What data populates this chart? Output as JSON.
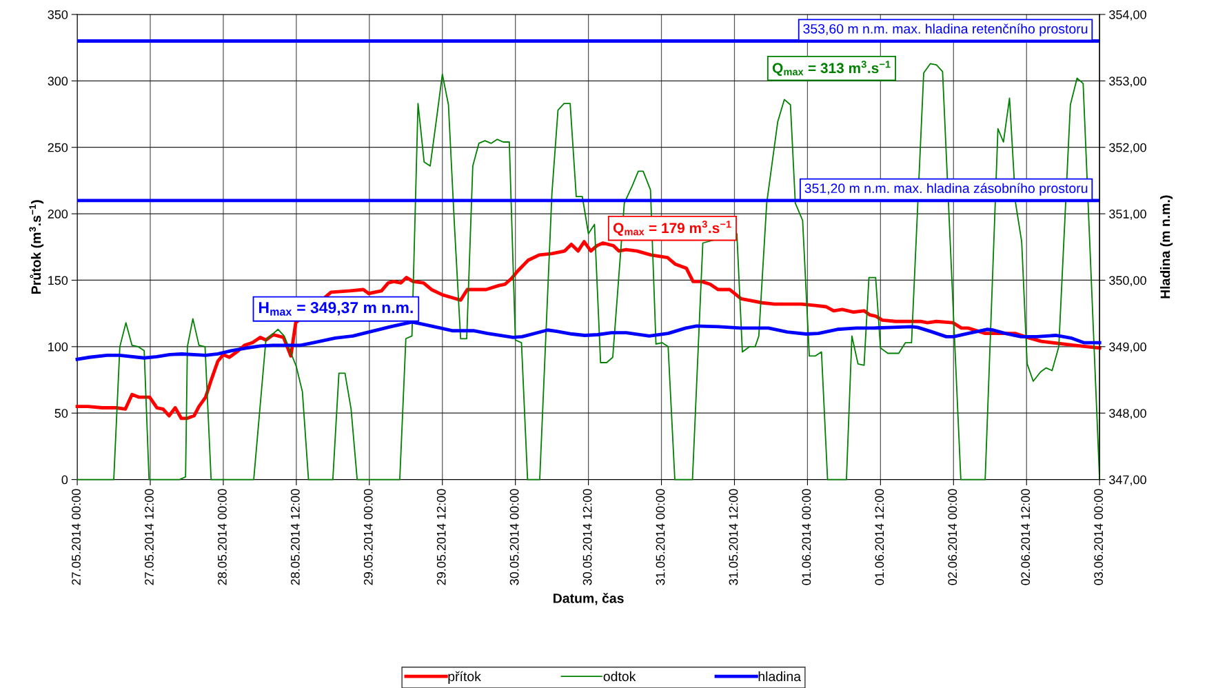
{
  "chart_data": {
    "type": "line",
    "xlabel": "Datum, čas",
    "ylabel": "Průtok (m$^{3}$.s$^{−1}$)",
    "y2label": "Hladina (m n.m.)",
    "xlim": [
      "2014-05-27T00:00",
      "2014-06-03T00:00"
    ],
    "xticks": [
      {
        "value": "2014-05-27T00:00",
        "label": "27.05.2014 00:00"
      },
      {
        "value": "2014-05-27T12:00",
        "label": "27.05.2014 12:00"
      },
      {
        "value": "2014-05-28T00:00",
        "label": "28.05.2014 00:00"
      },
      {
        "value": "2014-05-28T12:00",
        "label": "28.05.2014 12:00"
      },
      {
        "value": "2014-05-29T00:00",
        "label": "29.05.2014 00:00"
      },
      {
        "value": "2014-05-29T12:00",
        "label": "29.05.2014 12:00"
      },
      {
        "value": "2014-05-30T00:00",
        "label": "30.05.2014 00:00"
      },
      {
        "value": "2014-05-30T12:00",
        "label": "30.05.2014 12:00"
      },
      {
        "value": "2014-05-31T00:00",
        "label": "31.05.2014 00:00"
      },
      {
        "value": "2014-05-31T12:00",
        "label": "31.05.2014 12:00"
      },
      {
        "value": "2014-06-01T00:00",
        "label": "01.06.2014 00:00"
      },
      {
        "value": "2014-06-01T12:00",
        "label": "01.06.2014 12:00"
      },
      {
        "value": "2014-06-02T00:00",
        "label": "02.06.2014 00:00"
      },
      {
        "value": "2014-06-02T12:00",
        "label": "02.06.2014 12:00"
      },
      {
        "value": "2014-06-03T00:00",
        "label": "03.06.2014 00:00"
      }
    ],
    "ylim": [
      0,
      350
    ],
    "yticks": [
      0,
      50,
      100,
      150,
      200,
      250,
      300,
      350
    ],
    "y2lim": [
      347,
      354
    ],
    "y2ticks": [
      {
        "value": 347,
        "label": "347,00"
      },
      {
        "value": 348,
        "label": "348,00"
      },
      {
        "value": 349,
        "label": "349,00"
      },
      {
        "value": 350,
        "label": "350,00"
      },
      {
        "value": 351,
        "label": "351,00"
      },
      {
        "value": 352,
        "label": "352,00"
      },
      {
        "value": 353,
        "label": "353,00"
      },
      {
        "value": 354,
        "label": "354,00"
      }
    ],
    "grid": true,
    "legend": "bottom",
    "marker": "none",
    "line_style": "solid",
    "series": [
      {
        "name": "přítok",
        "color": "#ff0000",
        "x": [
          "2014-05-27T00:00",
          "2014-05-27T01:48",
          "2014-05-27T04:06",
          "2014-05-27T06:24",
          "2014-05-27T07:54",
          "2014-05-27T09:00",
          "2014-05-27T10:06",
          "2014-05-27T11:54",
          "2014-05-27T13:06",
          "2014-05-27T14:06",
          "2014-05-27T15:06",
          "2014-05-27T16:06",
          "2014-05-27T17:06",
          "2014-05-27T18:00",
          "2014-05-27T19:12",
          "2014-05-27T20:00",
          "2014-05-27T21:06",
          "2014-05-27T22:06",
          "2014-05-27T23:06",
          "2014-05-28T00:00",
          "2014-05-28T01:00",
          "2014-05-28T02:12",
          "2014-05-28T03:30",
          "2014-05-28T04:48",
          "2014-05-28T06:06",
          "2014-05-28T07:00",
          "2014-05-28T08:12",
          "2014-05-28T09:54",
          "2014-05-28T11:06",
          "2014-05-28T11:54",
          "2014-05-28T17:42",
          "2014-05-28T20:48",
          "2014-05-28T23:00",
          "2014-05-28T23:54",
          "2014-05-29T02:00",
          "2014-05-29T03:06",
          "2014-05-29T04:00",
          "2014-05-29T05:12",
          "2014-05-29T06:06",
          "2014-05-29T07:12",
          "2014-05-29T08:54",
          "2014-05-29T10:12",
          "2014-05-29T12:00",
          "2014-05-29T13:30",
          "2014-05-29T15:00",
          "2014-05-29T16:06",
          "2014-05-29T17:42",
          "2014-05-29T19:12",
          "2014-05-29T21:18",
          "2014-05-29T22:18",
          "2014-05-29T23:18",
          "2014-05-30T00:24",
          "2014-05-30T02:06",
          "2014-05-30T03:54",
          "2014-05-30T06:00",
          "2014-05-30T08:06",
          "2014-05-30T09:12",
          "2014-05-30T10:18",
          "2014-05-30T11:18",
          "2014-05-30T12:24",
          "2014-05-30T13:24",
          "2014-05-30T14:24",
          "2014-05-30T16:06",
          "2014-05-30T17:00",
          "2014-05-30T18:12",
          "2014-05-30T20:00",
          "2014-05-30T22:18",
          "2014-05-31T01:00",
          "2014-05-31T02:18",
          "2014-05-31T04:06",
          "2014-05-31T05:12",
          "2014-05-31T06:36",
          "2014-05-31T08:00",
          "2014-05-31T09:18",
          "2014-05-31T11:12",
          "2014-05-31T13:06",
          "2014-05-31T16:36",
          "2014-05-31T18:36",
          "2014-05-31T21:12",
          "2014-05-31T23:00",
          "2014-06-01T01:18",
          "2014-06-01T03:06",
          "2014-06-01T04:18",
          "2014-06-01T05:42",
          "2014-06-01T07:30",
          "2014-06-01T09:18",
          "2014-06-01T10:12",
          "2014-06-01T11:12",
          "2014-06-01T12:18",
          "2014-06-01T14:30",
          "2014-06-01T16:30",
          "2014-06-01T18:36",
          "2014-06-01T19:42",
          "2014-06-01T21:12",
          "2014-06-01T23:54",
          "2014-06-02T01:18",
          "2014-06-02T02:24",
          "2014-06-02T05:12",
          "2014-06-02T10:06",
          "2014-06-02T12:06",
          "2014-06-02T14:24",
          "2014-06-02T19:48",
          "2014-06-03T00:00"
        ],
        "values": [
          55,
          55,
          54,
          54,
          53,
          64,
          62,
          62,
          54,
          53,
          48,
          54,
          46,
          46,
          48,
          55,
          62,
          76,
          89,
          94,
          92,
          96,
          101,
          103,
          107,
          105,
          109,
          107,
          93,
          118,
          141,
          142,
          143,
          140,
          142,
          148,
          149,
          148,
          152,
          149,
          148,
          143,
          139,
          137,
          135,
          143,
          143,
          143,
          146,
          147,
          151,
          157,
          165,
          169,
          170,
          172,
          177,
          172,
          179,
          172,
          176,
          178,
          176,
          172,
          173,
          172,
          169,
          167,
          162,
          159,
          149,
          149,
          147,
          143,
          143,
          136,
          133,
          132,
          132,
          132,
          131,
          130,
          127,
          128,
          126,
          127,
          124,
          123,
          120,
          119,
          119,
          119,
          118,
          119,
          118,
          114,
          114,
          110,
          110,
          107,
          104,
          101,
          99
        ]
      },
      {
        "name": "odtok",
        "color": "#008000",
        "x": [
          "2014-05-27T00:00",
          "2014-05-27T06:00",
          "2014-05-27T07:00",
          "2014-05-27T08:00",
          "2014-05-27T09:00",
          "2014-05-27T10:00",
          "2014-05-27T11:00",
          "2014-05-27T11:48",
          "2014-05-27T16:48",
          "2014-05-27T17:48",
          "2014-05-27T18:06",
          "2014-05-27T19:00",
          "2014-05-27T20:00",
          "2014-05-27T21:00",
          "2014-05-27T22:00",
          "2014-05-28T05:00",
          "2014-05-28T07:00",
          "2014-05-28T09:00",
          "2014-05-28T10:00",
          "2014-05-28T12:00",
          "2014-05-28T13:00",
          "2014-05-28T14:00",
          "2014-05-28T18:00",
          "2014-05-28T19:00",
          "2014-05-28T20:00",
          "2014-05-28T21:00",
          "2014-05-28T22:00",
          "2014-05-29T05:00",
          "2014-05-29T06:00",
          "2014-05-29T07:00",
          "2014-05-29T08:00",
          "2014-05-29T09:00",
          "2014-05-29T10:00",
          "2014-05-29T11:00",
          "2014-05-29T12:00",
          "2014-05-29T13:00",
          "2014-05-29T14:00",
          "2014-05-29T15:00",
          "2014-05-29T16:00",
          "2014-05-29T17:00",
          "2014-05-29T18:00",
          "2014-05-29T19:00",
          "2014-05-29T20:00",
          "2014-05-29T21:00",
          "2014-05-29T22:00",
          "2014-05-29T23:00",
          "2014-05-30T00:00",
          "2014-05-30T01:00",
          "2014-05-30T02:00",
          "2014-05-30T04:00",
          "2014-05-30T06:00",
          "2014-05-30T07:00",
          "2014-05-30T08:00",
          "2014-05-30T09:00",
          "2014-05-30T10:00",
          "2014-05-30T11:00",
          "2014-05-30T12:00",
          "2014-05-30T13:00",
          "2014-05-30T14:00",
          "2014-05-30T15:00",
          "2014-05-30T16:00",
          "2014-05-30T17:54",
          "2014-05-30T19:12",
          "2014-05-30T20:12",
          "2014-05-30T21:00",
          "2014-05-30T22:12",
          "2014-05-30T23:06",
          "2014-05-31T00:06",
          "2014-05-31T01:06",
          "2014-05-31T02:12",
          "2014-05-31T05:06",
          "2014-05-31T06:48",
          "2014-05-31T12:24",
          "2014-05-31T13:18",
          "2014-05-31T14:30",
          "2014-05-31T15:24",
          "2014-05-31T16:00",
          "2014-05-31T17:18",
          "2014-05-31T19:06",
          "2014-05-31T20:12",
          "2014-05-31T21:12",
          "2014-05-31T22:00",
          "2014-05-31T23:12",
          "2014-06-01T00:18",
          "2014-06-01T01:18",
          "2014-06-01T02:18",
          "2014-06-01T03:18",
          "2014-06-01T06:24",
          "2014-06-01T07:18",
          "2014-06-01T08:18",
          "2014-06-01T09:18",
          "2014-06-01T10:06",
          "2014-06-01T11:12",
          "2014-06-01T12:00",
          "2014-06-01T13:12",
          "2014-06-01T15:00",
          "2014-06-01T16:06",
          "2014-06-01T17:06",
          "2014-06-01T19:06",
          "2014-06-01T20:12",
          "2014-06-01T21:12",
          "2014-06-01T22:12",
          "2014-06-02T01:12",
          "2014-06-02T05:12",
          "2014-06-02T07:18",
          "2014-06-02T08:12",
          "2014-06-02T09:12",
          "2014-06-02T10:12",
          "2014-06-02T11:12",
          "2014-06-02T12:06",
          "2014-06-02T13:06",
          "2014-06-02T14:18",
          "2014-06-02T15:12",
          "2014-06-02T16:12",
          "2014-06-02T17:18",
          "2014-06-02T19:12",
          "2014-06-02T20:18",
          "2014-06-02T21:18",
          "2014-06-03T00:00"
        ],
        "values": [
          0,
          0,
          100,
          118,
          101,
          100,
          97,
          0,
          0,
          2,
          100,
          121,
          101,
          100,
          0,
          0,
          105,
          113,
          108,
          85,
          66,
          0,
          0,
          80,
          80,
          53,
          0,
          0,
          106,
          108,
          283,
          239,
          236,
          270,
          305,
          282,
          190,
          106,
          106,
          236,
          253,
          255,
          253,
          256,
          254,
          254,
          105,
          103,
          0,
          0,
          215,
          278,
          283,
          283,
          213,
          213,
          185,
          192,
          88,
          88,
          92,
          208,
          221,
          232,
          232,
          218,
          102,
          103,
          100,
          0,
          0,
          178,
          185,
          96,
          100,
          100,
          108,
          208,
          269,
          286,
          282,
          208,
          195,
          93,
          93,
          96,
          0,
          0,
          108,
          87,
          86,
          152,
          152,
          99,
          95,
          95,
          103,
          103,
          306,
          313,
          312,
          307,
          0,
          0,
          264,
          254,
          287,
          208,
          179,
          87,
          74,
          81,
          84,
          82,
          100,
          282,
          302,
          298,
          0
        ]
      },
      {
        "name": "hladina",
        "color": "#0000ff",
        "axis": "y2",
        "x": [
          "2014-05-27T00:00",
          "2014-05-27T02:00",
          "2014-05-27T04:54",
          "2014-05-27T06:54",
          "2014-05-27T11:00",
          "2014-05-27T13:06",
          "2014-05-27T15:12",
          "2014-05-27T17:12",
          "2014-05-27T21:06",
          "2014-05-27T23:06",
          "2014-05-28T01:24",
          "2014-05-28T03:48",
          "2014-05-28T06:06",
          "2014-05-28T08:12",
          "2014-05-28T12:42",
          "2014-05-28T14:48",
          "2014-05-28T16:24",
          "2014-05-28T18:24",
          "2014-05-28T21:18",
          "2014-05-29T00:24",
          "2014-05-29T03:30",
          "2014-05-29T07:00",
          "2014-05-29T08:42",
          "2014-05-29T11:42",
          "2014-05-29T13:36",
          "2014-05-29T17:06",
          "2014-05-29T19:24",
          "2014-05-29T23:36",
          "2014-05-30T01:06",
          "2014-05-30T05:18",
          "2014-05-30T06:48",
          "2014-05-30T09:18",
          "2014-05-30T11:24",
          "2014-05-30T13:30",
          "2014-05-30T15:48",
          "2014-05-30T18:12",
          "2014-05-30T22:00",
          "2014-05-31T01:06",
          "2014-05-31T04:00",
          "2014-05-31T05:48",
          "2014-05-31T09:24",
          "2014-05-31T13:00",
          "2014-05-31T17:36",
          "2014-05-31T20:42",
          "2014-05-31T23:48",
          "2014-06-01T01:48",
          "2014-06-01T04:54",
          "2014-06-01T08:00",
          "2014-06-01T10:54",
          "2014-06-01T14:00",
          "2014-06-01T17:06",
          "2014-06-01T18:06",
          "2014-06-01T20:12",
          "2014-06-01T22:48",
          "2014-06-02T00:00",
          "2014-06-02T02:24",
          "2014-06-02T05:30",
          "2014-06-02T06:30",
          "2014-06-02T08:30",
          "2014-06-02T11:06",
          "2014-06-02T13:42",
          "2014-06-02T16:48",
          "2014-06-02T19:18",
          "2014-06-02T21:24",
          "2014-06-03T00:00"
        ],
        "values": [
          348.81,
          348.84,
          348.87,
          348.87,
          348.83,
          348.85,
          348.88,
          348.89,
          348.87,
          348.89,
          348.94,
          348.98,
          349.01,
          349.02,
          349.02,
          349.06,
          349.09,
          349.13,
          349.16,
          349.23,
          349.3,
          349.37,
          349.34,
          349.28,
          349.24,
          349.24,
          349.2,
          349.14,
          349.15,
          349.25,
          349.23,
          349.19,
          349.17,
          349.18,
          349.21,
          349.21,
          349.16,
          349.2,
          349.28,
          349.31,
          349.3,
          349.28,
          349.28,
          349.22,
          349.19,
          349.2,
          349.26,
          349.28,
          349.28,
          349.29,
          349.3,
          349.29,
          349.23,
          349.15,
          349.15,
          349.2,
          349.26,
          349.25,
          349.2,
          349.15,
          349.15,
          349.17,
          349.13,
          349.06,
          349.06
        ]
      }
    ],
    "ref_lines": [
      {
        "axis": "y2",
        "value": 353.6,
        "label": "353,60 m n.m. max. hladina retenčního prostoru",
        "color": "#0000ff"
      },
      {
        "axis": "y2",
        "value": 351.2,
        "label": "351,20 m n.m. max. hladina zásobního prostoru",
        "color": "#0000ff"
      }
    ],
    "annotations": [
      {
        "text": "Q$_{max}$ = 313 m$^{3}$.s$^{−1}$",
        "x": "2014-06-01T20:12",
        "y": 313
      },
      {
        "text": "Q$_{max}$ = 179 m$^{3}$.s$^{−1}$",
        "x": "2014-05-30T11:18",
        "y": 179
      },
      "H$_{max}$ = 349,37 m n.m."
    ]
  }
}
